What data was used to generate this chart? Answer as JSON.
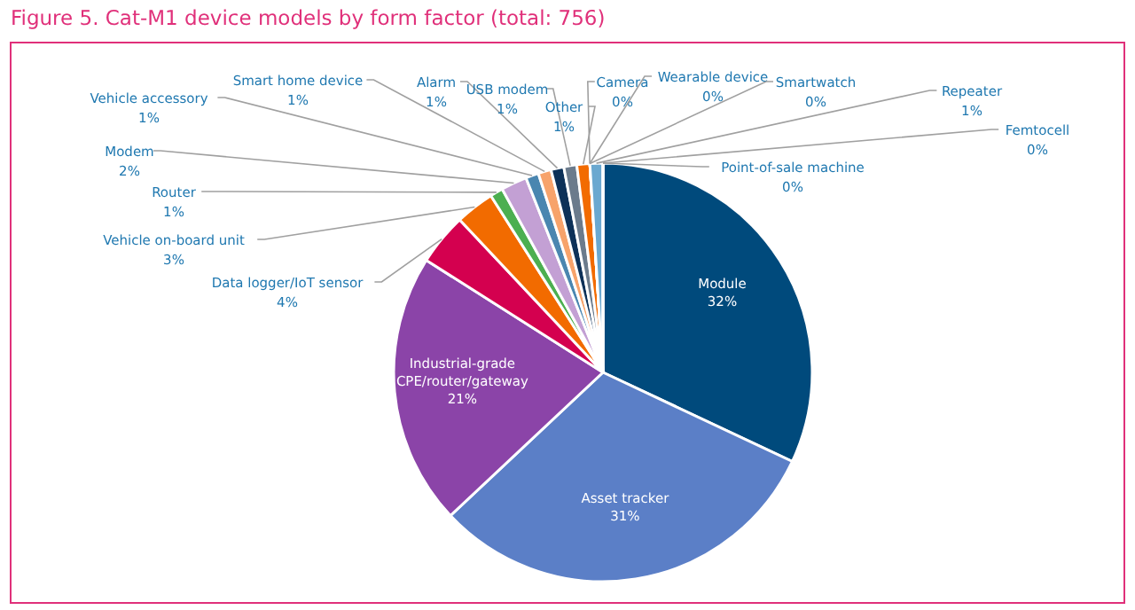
{
  "chart_data": {
    "type": "pie",
    "title": "Figure 5. Cat-M1 device models by form factor (total: 756)",
    "categories": [
      "Module",
      "Asset tracker",
      "Industrial-grade CPE/router/gateway",
      "Data logger/IoT sensor",
      "Vehicle on-board unit",
      "Router",
      "Modem",
      "Vehicle accessory",
      "Smart home device",
      "Alarm",
      "USB modem",
      "Other",
      "Camera",
      "Wearable device",
      "Smartwatch",
      "Repeater",
      "Femtocell",
      "Point-of-sale machine"
    ],
    "values": [
      32,
      31,
      21,
      4,
      3,
      1,
      2,
      1,
      1,
      1,
      1,
      1,
      0,
      0,
      0,
      1,
      0,
      0
    ],
    "colors": [
      "#004a7c",
      "#5b7fc7",
      "#8b44a8",
      "#d4004f",
      "#f26b00",
      "#4caf50",
      "#c3a0d4",
      "#4a86b0",
      "#f7a36b",
      "#0d3158",
      "#6b7b8c",
      "#f26b00",
      "#9ecfe8",
      "#7ab8d8",
      "#b8d8ea",
      "#6aa8d0",
      "#c0c0c0",
      "#88a0b8"
    ],
    "value_labels": [
      "32%",
      "31%",
      "21%",
      "4%",
      "3%",
      "1%",
      "2%",
      "1%",
      "1%",
      "1%",
      "1%",
      "1%",
      "0%",
      "0%",
      "0%",
      "1%",
      "0%",
      "0%"
    ]
  }
}
